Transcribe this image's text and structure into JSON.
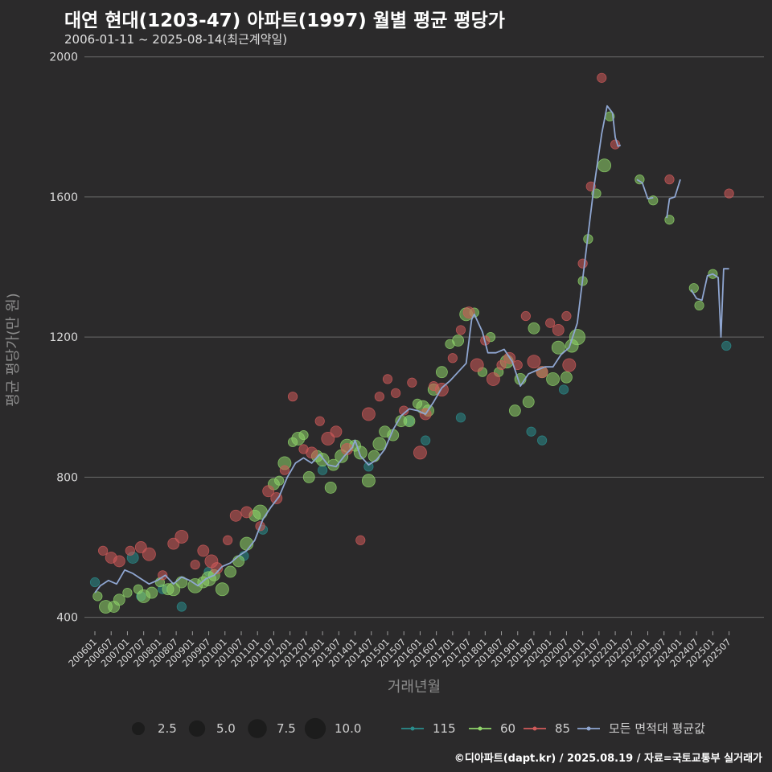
{
  "header": {
    "title": "대연 현대(1203-47) 아파트(1997) 월별 평균 평당가",
    "subtitle": "2006-01-11 ~ 2025-08-14(최근계약일)"
  },
  "footer": {
    "credit": "©디아파트(dapt.kr) / 2025.08.19 / 자료=국토교통부 실거래가"
  },
  "colors": {
    "background": "#2b2a2b",
    "grid": "#6a6a6a",
    "avg_line": "#8fa6d1",
    "s115": "#2a8c8c",
    "s60": "#8fd46a",
    "s85": "#d05a5a"
  },
  "chart_data": {
    "type": "line+scatter",
    "title": "대연 현대(1203-47) 아파트(1997) 월별 평균 평당가",
    "xlabel": "거래년월",
    "ylabel": "평균 평당가(만 원)",
    "ylim": [
      360,
      2020
    ],
    "yticks": [
      400,
      800,
      1200,
      1600
    ],
    "ytick_labels": [
      "400",
      "800",
      "1200",
      "1600"
    ],
    "ytick_top_label": "2000",
    "x_start": "2006-01",
    "x_end": "2025-08",
    "xtick_labels": [
      "200601",
      "200607",
      "200701",
      "200707",
      "200801",
      "200807",
      "200901",
      "200907",
      "201001",
      "201007",
      "201101",
      "201107",
      "201201",
      "201207",
      "201301",
      "201307",
      "201401",
      "201407",
      "201501",
      "201507",
      "201601",
      "201607",
      "201701",
      "201707",
      "201801",
      "201807",
      "201901",
      "201907",
      "202001",
      "202007",
      "202101",
      "202107",
      "202201",
      "202207",
      "202301",
      "202307",
      "202401",
      "202407",
      "202501",
      "202507"
    ],
    "avg_series_name": "모든 면적대 평균값",
    "avg_line": [
      [
        "2006-01",
        470
      ],
      [
        "2006-03",
        490
      ],
      [
        "2006-06",
        505
      ],
      [
        "2006-09",
        495
      ],
      [
        "2006-12",
        535
      ],
      [
        "2007-03",
        525
      ],
      [
        "2007-06",
        510
      ],
      [
        "2007-09",
        495
      ],
      [
        "2007-12",
        505
      ],
      [
        "2008-03",
        520
      ],
      [
        "2008-06",
        495
      ],
      [
        "2008-09",
        515
      ],
      [
        "2008-12",
        505
      ],
      [
        "2009-03",
        490
      ],
      [
        "2009-06",
        510
      ],
      [
        "2009-09",
        520
      ],
      [
        "2009-12",
        545
      ],
      [
        "2010-03",
        555
      ],
      [
        "2010-06",
        575
      ],
      [
        "2010-09",
        590
      ],
      [
        "2010-12",
        620
      ],
      [
        "2011-03",
        680
      ],
      [
        "2011-06",
        715
      ],
      [
        "2011-09",
        745
      ],
      [
        "2011-12",
        800
      ],
      [
        "2012-03",
        840
      ],
      [
        "2012-06",
        855
      ],
      [
        "2012-09",
        840
      ],
      [
        "2012-12",
        865
      ],
      [
        "2013-03",
        835
      ],
      [
        "2013-06",
        830
      ],
      [
        "2013-09",
        860
      ],
      [
        "2013-12",
        885
      ],
      [
        "2014-01",
        905
      ],
      [
        "2014-03",
        860
      ],
      [
        "2014-06",
        835
      ],
      [
        "2014-09",
        850
      ],
      [
        "2014-12",
        880
      ],
      [
        "2015-03",
        935
      ],
      [
        "2015-06",
        975
      ],
      [
        "2015-09",
        995
      ],
      [
        "2015-12",
        990
      ],
      [
        "2016-03",
        980
      ],
      [
        "2016-06",
        1015
      ],
      [
        "2016-09",
        1055
      ],
      [
        "2016-12",
        1075
      ],
      [
        "2017-03",
        1100
      ],
      [
        "2017-06",
        1125
      ],
      [
        "2017-08",
        1250
      ],
      [
        "2017-09",
        1265
      ],
      [
        "2017-12",
        1215
      ],
      [
        "2018-02",
        1155
      ],
      [
        "2018-05",
        1155
      ],
      [
        "2018-08",
        1165
      ],
      [
        "2018-11",
        1130
      ],
      [
        "2019-02",
        1060
      ],
      [
        "2019-05",
        1095
      ],
      [
        "2019-08",
        1105
      ],
      [
        "2019-11",
        1115
      ],
      [
        "2020-02",
        1115
      ],
      [
        "2020-05",
        1150
      ],
      [
        "2020-08",
        1170
      ],
      [
        "2020-11",
        1240
      ],
      [
        "2021-02",
        1430
      ],
      [
        "2021-05",
        1620
      ],
      [
        "2021-08",
        1780
      ],
      [
        "2021-10",
        1860
      ],
      [
        "2021-12",
        1840
      ],
      [
        "2022-01",
        1770
      ],
      [
        "2022-02",
        1745
      ],
      [
        "2022-03",
        1748
      ],
      null,
      [
        "2022-09",
        1650
      ],
      [
        "2022-11",
        1640
      ],
      [
        "2023-01",
        1595
      ],
      [
        "2023-03",
        1598
      ],
      null,
      [
        "2023-08",
        1540
      ],
      [
        "2023-09",
        1595
      ],
      [
        "2023-11",
        1600
      ],
      [
        "2024-01",
        1650
      ],
      null,
      [
        "2024-05",
        1335
      ],
      [
        "2024-07",
        1310
      ],
      [
        "2024-09",
        1305
      ],
      [
        "2024-11",
        1375
      ],
      [
        "2025-01",
        1380
      ],
      [
        "2025-03",
        1370
      ],
      [
        "2025-04",
        1200
      ],
      [
        "2025-05",
        1395
      ],
      [
        "2025-07",
        1395
      ]
    ],
    "size_legend": [
      {
        "label": "2.5",
        "size": 2.5
      },
      {
        "label": "5.0",
        "size": 5.0
      },
      {
        "label": "7.5",
        "size": 7.5
      },
      {
        "label": "10.0",
        "size": 10.0
      }
    ],
    "series": [
      {
        "name": "115",
        "color": "#2a8c8c",
        "points": [
          [
            "2006-01",
            500,
            1
          ],
          [
            "2007-03",
            570,
            2
          ],
          [
            "2007-06",
            460,
            1
          ],
          [
            "2008-02",
            480,
            1
          ],
          [
            "2008-09",
            430,
            1
          ],
          [
            "2009-07",
            530,
            1
          ],
          [
            "2010-08",
            575,
            1
          ],
          [
            "2011-03",
            650,
            1
          ],
          [
            "2013-01",
            820,
            1
          ],
          [
            "2014-06",
            830,
            1
          ],
          [
            "2015-09",
            960,
            1
          ],
          [
            "2016-03",
            905,
            1
          ],
          [
            "2017-04",
            970,
            1
          ],
          [
            "2019-06",
            930,
            1
          ],
          [
            "2019-10",
            905,
            1
          ],
          [
            "2020-06",
            1050,
            1
          ],
          [
            "2025-06",
            1175,
            1
          ]
        ]
      },
      {
        "name": "60",
        "color": "#8fd46a",
        "points": [
          [
            "2006-02",
            460,
            1
          ],
          [
            "2006-05",
            430,
            3
          ],
          [
            "2006-08",
            430,
            2
          ],
          [
            "2006-10",
            450,
            2
          ],
          [
            "2007-01",
            470,
            1
          ],
          [
            "2007-05",
            480,
            1
          ],
          [
            "2007-07",
            460,
            3
          ],
          [
            "2007-10",
            470,
            2
          ],
          [
            "2008-01",
            500,
            1
          ],
          [
            "2008-04",
            480,
            2
          ],
          [
            "2008-06",
            480,
            3
          ],
          [
            "2008-09",
            500,
            2
          ],
          [
            "2009-02",
            490,
            4
          ],
          [
            "2009-05",
            500,
            2
          ],
          [
            "2009-07",
            510,
            4
          ],
          [
            "2009-09",
            520,
            2
          ],
          [
            "2009-12",
            480,
            3
          ],
          [
            "2010-03",
            530,
            2
          ],
          [
            "2010-06",
            560,
            2
          ],
          [
            "2010-09",
            610,
            3
          ],
          [
            "2010-12",
            690,
            2
          ],
          [
            "2011-02",
            700,
            4
          ],
          [
            "2011-07",
            780,
            2
          ],
          [
            "2011-09",
            790,
            1
          ],
          [
            "2011-11",
            840,
            3
          ],
          [
            "2012-02",
            900,
            1
          ],
          [
            "2012-04",
            910,
            3
          ],
          [
            "2012-06",
            920,
            1
          ],
          [
            "2012-08",
            800,
            2
          ],
          [
            "2012-11",
            860,
            2
          ],
          [
            "2013-01",
            850,
            3
          ],
          [
            "2013-04",
            770,
            2
          ],
          [
            "2013-05",
            835,
            2
          ],
          [
            "2013-08",
            860,
            3
          ],
          [
            "2013-10",
            890,
            3
          ],
          [
            "2014-01",
            890,
            2
          ],
          [
            "2014-03",
            870,
            3
          ],
          [
            "2014-06",
            790,
            3
          ],
          [
            "2014-08",
            860,
            2
          ],
          [
            "2014-10",
            895,
            3
          ],
          [
            "2014-12",
            930,
            2
          ],
          [
            "2015-03",
            920,
            2
          ],
          [
            "2015-06",
            960,
            2
          ],
          [
            "2015-09",
            960,
            2
          ],
          [
            "2015-12",
            1010,
            1
          ],
          [
            "2016-02",
            1000,
            3
          ],
          [
            "2016-04",
            990,
            2
          ],
          [
            "2016-06",
            1050,
            2
          ],
          [
            "2016-09",
            1100,
            2
          ],
          [
            "2016-12",
            1180,
            1
          ],
          [
            "2017-03",
            1190,
            2
          ],
          [
            "2017-06",
            1265,
            3
          ],
          [
            "2017-09",
            1270,
            1
          ],
          [
            "2017-12",
            1100,
            1
          ],
          [
            "2018-03",
            1200,
            1
          ],
          [
            "2018-06",
            1100,
            1
          ],
          [
            "2018-09",
            1130,
            3
          ],
          [
            "2018-12",
            990,
            2
          ],
          [
            "2019-02",
            1080,
            2
          ],
          [
            "2019-05",
            1015,
            2
          ],
          [
            "2019-07",
            1225,
            2
          ],
          [
            "2019-10",
            1100,
            2
          ],
          [
            "2020-02",
            1080,
            3
          ],
          [
            "2020-04",
            1170,
            3
          ],
          [
            "2020-07",
            1085,
            2
          ],
          [
            "2020-09",
            1175,
            3
          ],
          [
            "2020-11",
            1200,
            5
          ],
          [
            "2021-01",
            1360,
            1
          ],
          [
            "2021-03",
            1480,
            1
          ],
          [
            "2021-06",
            1610,
            1
          ],
          [
            "2021-09",
            1690,
            3
          ],
          [
            "2021-11",
            1830,
            1
          ],
          [
            "2022-10",
            1650,
            1
          ],
          [
            "2023-03",
            1590,
            1
          ],
          [
            "2023-09",
            1535,
            1
          ],
          [
            "2024-06",
            1340,
            1
          ],
          [
            "2024-08",
            1290,
            1
          ],
          [
            "2025-01",
            1380,
            1
          ]
        ]
      },
      {
        "name": "85",
        "color": "#d05a5a",
        "points": [
          [
            "2006-04",
            590,
            1
          ],
          [
            "2006-07",
            570,
            2
          ],
          [
            "2006-10",
            560,
            2
          ],
          [
            "2007-02",
            590,
            1
          ],
          [
            "2007-06",
            600,
            2
          ],
          [
            "2007-09",
            580,
            3
          ],
          [
            "2008-02",
            520,
            1
          ],
          [
            "2008-06",
            610,
            2
          ],
          [
            "2008-09",
            630,
            3
          ],
          [
            "2009-02",
            550,
            1
          ],
          [
            "2009-05",
            590,
            2
          ],
          [
            "2009-08",
            560,
            3
          ],
          [
            "2009-10",
            540,
            2
          ],
          [
            "2010-02",
            620,
            1
          ],
          [
            "2010-05",
            690,
            2
          ],
          [
            "2010-09",
            700,
            2
          ],
          [
            "2011-02",
            660,
            1
          ],
          [
            "2011-05",
            760,
            2
          ],
          [
            "2011-08",
            740,
            2
          ],
          [
            "2011-11",
            820,
            1
          ],
          [
            "2012-02",
            1030,
            1
          ],
          [
            "2012-06",
            880,
            1
          ],
          [
            "2012-09",
            870,
            2
          ],
          [
            "2012-12",
            960,
            1
          ],
          [
            "2013-03",
            910,
            3
          ],
          [
            "2013-06",
            930,
            2
          ],
          [
            "2013-10",
            880,
            2
          ],
          [
            "2014-03",
            620,
            1
          ],
          [
            "2014-06",
            980,
            3
          ],
          [
            "2014-10",
            1030,
            1
          ],
          [
            "2015-01",
            1080,
            1
          ],
          [
            "2015-04",
            1040,
            1
          ],
          [
            "2015-07",
            990,
            1
          ],
          [
            "2015-10",
            1070,
            1
          ],
          [
            "2016-01",
            870,
            3
          ],
          [
            "2016-03",
            980,
            2
          ],
          [
            "2016-06",
            1060,
            1
          ],
          [
            "2016-09",
            1050,
            3
          ],
          [
            "2017-01",
            1140,
            1
          ],
          [
            "2017-04",
            1220,
            1
          ],
          [
            "2017-07",
            1270,
            2
          ],
          [
            "2017-10",
            1120,
            3
          ],
          [
            "2018-01",
            1190,
            1
          ],
          [
            "2018-04",
            1080,
            3
          ],
          [
            "2018-07",
            1120,
            1
          ],
          [
            "2018-10",
            1140,
            2
          ],
          [
            "2019-01",
            1120,
            1
          ],
          [
            "2019-04",
            1260,
            1
          ],
          [
            "2019-07",
            1130,
            3
          ],
          [
            "2019-10",
            1100,
            2
          ],
          [
            "2020-01",
            1240,
            1
          ],
          [
            "2020-04",
            1220,
            2
          ],
          [
            "2020-07",
            1260,
            1
          ],
          [
            "2020-08",
            1120,
            3
          ],
          [
            "2021-01",
            1410,
            1
          ],
          [
            "2021-04",
            1630,
            1
          ],
          [
            "2021-08",
            1940,
            1
          ],
          [
            "2022-01",
            1750,
            1
          ],
          [
            "2023-09",
            1650,
            1
          ],
          [
            "2025-07",
            1610,
            1
          ]
        ]
      }
    ]
  }
}
